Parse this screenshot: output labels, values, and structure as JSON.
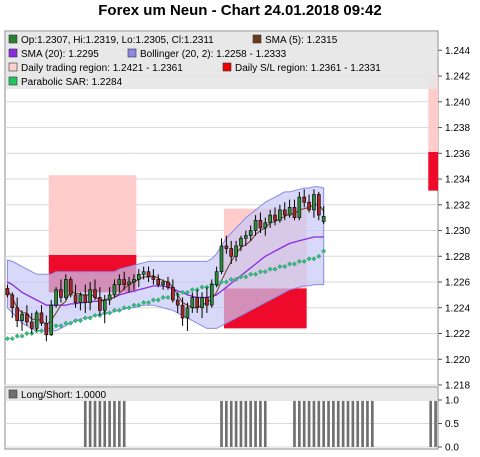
{
  "title": "Forex um Neun - Chart 24.01.2018 09:42",
  "chart_data": [
    {
      "type": "candlestick",
      "ylim": [
        1.218,
        1.2455
      ],
      "y_ticks": [
        "1.218",
        "1.220",
        "1.222",
        "1.224",
        "1.226",
        "1.228",
        "1.230",
        "1.232",
        "1.234",
        "1.236",
        "1.238",
        "1.240",
        "1.242",
        "1.244"
      ],
      "grid": true,
      "legend": [
        {
          "label": "Op:1.2307, Hi:1.2319, Lo:1.2305, Cl:1.2311",
          "color": "#2e7d32"
        },
        {
          "label": "SMA (5): 1.2315",
          "color": "#6d3b1c"
        },
        {
          "label": "SMA (20): 1.2295",
          "color": "#8a2be2"
        },
        {
          "label": "Bollinger (20, 2): 1.2258 - 1.2333",
          "color": "#8a8ae6"
        },
        {
          "label": "Daily trading region: 1.2421 - 1.2361",
          "color": "#ffd0d0"
        },
        {
          "label": "Daily S/L region: 1.2361 - 1.2331",
          "color": "#ee0000"
        },
        {
          "label": "Parabolic SAR: 1.2284",
          "color": "#22c55e"
        }
      ],
      "ohlc": [
        [
          1.2255,
          1.2258,
          1.2248,
          1.225
        ],
        [
          1.225,
          1.2252,
          1.2232,
          1.224
        ],
        [
          1.224,
          1.2248,
          1.2225,
          1.223
        ],
        [
          1.223,
          1.2238,
          1.2222,
          1.2235
        ],
        [
          1.2235,
          1.2242,
          1.2226,
          1.2229
        ],
        [
          1.2229,
          1.2236,
          1.222,
          1.2224
        ],
        [
          1.2224,
          1.2238,
          1.2222,
          1.2236
        ],
        [
          1.2236,
          1.2242,
          1.2226,
          1.2228
        ],
        [
          1.2228,
          1.2234,
          1.2214,
          1.2219
        ],
        [
          1.2219,
          1.2246,
          1.2218,
          1.2242
        ],
        [
          1.2242,
          1.2256,
          1.224,
          1.2254
        ],
        [
          1.2254,
          1.2262,
          1.2244,
          1.2248
        ],
        [
          1.2248,
          1.2266,
          1.2246,
          1.2262
        ],
        [
          1.2262,
          1.2264,
          1.2248,
          1.225
        ],
        [
          1.225,
          1.2258,
          1.224,
          1.2244
        ],
        [
          1.2244,
          1.2252,
          1.2238,
          1.225
        ],
        [
          1.225,
          1.2258,
          1.2236,
          1.2244
        ],
        [
          1.2244,
          1.226,
          1.2238,
          1.2254
        ],
        [
          1.2254,
          1.2262,
          1.2246,
          1.2248
        ],
        [
          1.2248,
          1.2256,
          1.2234,
          1.2238
        ],
        [
          1.2238,
          1.225,
          1.2228,
          1.2246
        ],
        [
          1.2246,
          1.2256,
          1.2242,
          1.225
        ],
        [
          1.225,
          1.2262,
          1.2248,
          1.2258
        ],
        [
          1.2258,
          1.2266,
          1.2252,
          1.2262
        ],
        [
          1.2262,
          1.2268,
          1.2254,
          1.2258
        ],
        [
          1.2258,
          1.2264,
          1.2252,
          1.226
        ],
        [
          1.226,
          1.2266,
          1.2254,
          1.2262
        ],
        [
          1.2262,
          1.227,
          1.2256,
          1.2266
        ],
        [
          1.2266,
          1.2272,
          1.2262,
          1.2268
        ],
        [
          1.2268,
          1.2272,
          1.226,
          1.2264
        ],
        [
          1.2264,
          1.227,
          1.2258,
          1.2262
        ],
        [
          1.2262,
          1.2266,
          1.2256,
          1.2258
        ],
        [
          1.2258,
          1.2262,
          1.2254,
          1.226
        ],
        [
          1.226,
          1.2264,
          1.2254,
          1.2256
        ],
        [
          1.2256,
          1.2262,
          1.2244,
          1.2246
        ],
        [
          1.2246,
          1.2252,
          1.2236,
          1.2242
        ],
        [
          1.2242,
          1.2248,
          1.2226,
          1.2232
        ],
        [
          1.2232,
          1.2244,
          1.2222,
          1.224
        ],
        [
          1.224,
          1.2252,
          1.2236,
          1.2248
        ],
        [
          1.2248,
          1.2254,
          1.2236,
          1.224
        ],
        [
          1.224,
          1.2252,
          1.2232,
          1.2248
        ],
        [
          1.2248,
          1.2256,
          1.2236,
          1.2242
        ],
        [
          1.2242,
          1.2262,
          1.224,
          1.2258
        ],
        [
          1.2258,
          1.2272,
          1.2256,
          1.2268
        ],
        [
          1.2268,
          1.2294,
          1.2266,
          1.2288
        ],
        [
          1.2288,
          1.2296,
          1.2282,
          1.2286
        ],
        [
          1.2286,
          1.2292,
          1.2274,
          1.228
        ],
        [
          1.228,
          1.2292,
          1.2276,
          1.2288
        ],
        [
          1.2288,
          1.2296,
          1.2284,
          1.2294
        ],
        [
          1.2294,
          1.23,
          1.2288,
          1.2296
        ],
        [
          1.2296,
          1.2304,
          1.2292,
          1.23
        ],
        [
          1.23,
          1.2312,
          1.2296,
          1.2308
        ],
        [
          1.2308,
          1.2314,
          1.2298,
          1.2302
        ],
        [
          1.2302,
          1.231,
          1.2296,
          1.2306
        ],
        [
          1.2306,
          1.2316,
          1.2302,
          1.2312
        ],
        [
          1.2312,
          1.2318,
          1.2304,
          1.2308
        ],
        [
          1.2308,
          1.232,
          1.2306,
          1.2316
        ],
        [
          1.2316,
          1.2322,
          1.2308,
          1.2312
        ],
        [
          1.2312,
          1.2324,
          1.231,
          1.2318
        ],
        [
          1.2318,
          1.2324,
          1.2308,
          1.231
        ],
        [
          1.231,
          1.233,
          1.2308,
          1.2326
        ],
        [
          1.2326,
          1.2332,
          1.2318,
          1.2322
        ],
        [
          1.2322,
          1.2328,
          1.2314,
          1.2316
        ],
        [
          1.2316,
          1.2332,
          1.231,
          1.2328
        ],
        [
          1.2328,
          1.233,
          1.2308,
          1.2312
        ],
        [
          1.2307,
          1.2319,
          1.2305,
          1.2311
        ]
      ],
      "sma5": [
        1.2254,
        1.2248,
        1.224,
        1.2236,
        1.2236,
        1.2231,
        1.2231,
        1.223,
        1.2227,
        1.223,
        1.2236,
        1.2242,
        1.2245,
        1.2253,
        1.2251,
        1.2251,
        1.2249,
        1.2251,
        1.2248,
        1.2246,
        1.2246,
        1.2247,
        1.2248,
        1.2251,
        1.2255,
        1.2258,
        1.226,
        1.2262,
        1.2264,
        1.2264,
        1.2265,
        1.2263,
        1.2261,
        1.226,
        1.2256,
        1.225,
        1.2244,
        1.2242,
        1.224,
        1.224,
        1.2242,
        1.2244,
        1.2247,
        1.2252,
        1.2261,
        1.2269,
        1.2276,
        1.2282,
        1.2287,
        1.2289,
        1.2292,
        1.2297,
        1.23,
        1.2302,
        1.2306,
        1.2307,
        1.2309,
        1.2311,
        1.2313,
        1.2313,
        1.2316,
        1.2317,
        1.2318,
        1.232,
        1.232,
        1.2315
      ],
      "sma20": [
        1.226,
        1.2258,
        1.2255,
        1.2252,
        1.225,
        1.2248,
        1.2246,
        1.2244,
        1.2242,
        1.2242,
        1.2242,
        1.2242,
        1.2242,
        1.2243,
        1.2243,
        1.2244,
        1.2244,
        1.2245,
        1.2245,
        1.2245,
        1.2246,
        1.2247,
        1.2248,
        1.225,
        1.2251,
        1.2252,
        1.2253,
        1.2254,
        1.2255,
        1.2256,
        1.2257,
        1.2257,
        1.2257,
        1.2256,
        1.2255,
        1.2253,
        1.2252,
        1.225,
        1.2249,
        1.2248,
        1.2248,
        1.2248,
        1.2249,
        1.225,
        1.2253,
        1.2256,
        1.2259,
        1.2262,
        1.2265,
        1.2268,
        1.2271,
        1.2274,
        1.2277,
        1.228,
        1.2282,
        1.2284,
        1.2286,
        1.2288,
        1.229,
        1.2291,
        1.2292,
        1.2293,
        1.2294,
        1.2295,
        1.2295,
        1.2295
      ],
      "bollinger_upper": [
        1.2277,
        1.2276,
        1.2274,
        1.2272,
        1.227,
        1.2268,
        1.2266,
        1.2266,
        1.2266,
        1.2266,
        1.2268,
        1.2268,
        1.2268,
        1.2268,
        1.2268,
        1.2268,
        1.2268,
        1.2268,
        1.2268,
        1.2268,
        1.2268,
        1.2268,
        1.2268,
        1.227,
        1.2271,
        1.2272,
        1.2273,
        1.2274,
        1.2275,
        1.2276,
        1.2276,
        1.2276,
        1.2276,
        1.2276,
        1.2276,
        1.2276,
        1.2276,
        1.2276,
        1.2276,
        1.2276,
        1.2276,
        1.2276,
        1.2278,
        1.2282,
        1.2288,
        1.2294,
        1.2298,
        1.2302,
        1.2306,
        1.231,
        1.2313,
        1.2316,
        1.2319,
        1.2322,
        1.2324,
        1.2326,
        1.2328,
        1.233,
        1.233,
        1.2331,
        1.2332,
        1.2333,
        1.2333,
        1.2334,
        1.2334,
        1.2333
      ],
      "bollinger_lower": [
        1.224,
        1.2236,
        1.2232,
        1.2228,
        1.2226,
        1.2224,
        1.2222,
        1.2222,
        1.2222,
        1.2222,
        1.2222,
        1.2224,
        1.2226,
        1.2228,
        1.223,
        1.2231,
        1.2232,
        1.2233,
        1.2234,
        1.2235,
        1.2235,
        1.2236,
        1.2237,
        1.2238,
        1.2239,
        1.224,
        1.224,
        1.2241,
        1.2242,
        1.2242,
        1.2242,
        1.2241,
        1.224,
        1.2239,
        1.2238,
        1.2236,
        1.2234,
        1.2232,
        1.223,
        1.2228,
        1.2226,
        1.2224,
        1.2224,
        1.2224,
        1.2226,
        1.2228,
        1.223,
        1.2232,
        1.2234,
        1.2236,
        1.2238,
        1.224,
        1.2242,
        1.2244,
        1.2246,
        1.2248,
        1.225,
        1.2252,
        1.2254,
        1.2255,
        1.2256,
        1.2257,
        1.2257,
        1.2258,
        1.2258,
        1.2258
      ],
      "parabolic_sar": [
        1.2216,
        1.2216,
        1.2218,
        1.2218,
        1.222,
        1.222,
        1.2222,
        1.2222,
        1.2224,
        1.2224,
        1.2226,
        1.2226,
        1.2228,
        1.2228,
        1.223,
        1.223,
        1.2232,
        1.2232,
        1.2234,
        1.2234,
        1.2236,
        1.2236,
        1.2238,
        1.2238,
        1.224,
        1.224,
        1.2242,
        1.2242,
        1.2244,
        1.2244,
        1.2246,
        1.2246,
        1.2248,
        1.2248,
        1.225,
        1.225,
        1.2252,
        1.2252,
        1.2254,
        1.2254,
        1.2256,
        1.2256,
        1.2258,
        1.2258,
        1.226,
        1.226,
        1.2262,
        1.2262,
        1.2264,
        1.2264,
        1.2266,
        1.2266,
        1.2268,
        1.2268,
        1.227,
        1.227,
        1.2272,
        1.2272,
        1.2274,
        1.2274,
        1.2276,
        1.2276,
        1.2278,
        1.2278,
        1.228,
        1.2284
      ],
      "region_blocks": [
        {
          "i0": 9,
          "i1": 26,
          "trade": [
            1.2343,
            1.2281
          ],
          "sl": [
            1.2281,
            1.2252
          ]
        },
        {
          "i0": 45,
          "i1": 61,
          "trade": [
            1.2317,
            1.2255
          ],
          "sl": [
            1.2255,
            1.2224
          ]
        },
        {
          "i0": 87,
          "i1": 88,
          "trade": [
            1.2421,
            1.2361
          ],
          "sl": [
            1.2361,
            1.2331
          ]
        }
      ]
    },
    {
      "type": "bar",
      "legend": [
        {
          "label": "Long/Short: 1.0000",
          "color": "#707070"
        }
      ],
      "y_ticks": [
        "0.0",
        "0.5",
        "1.0"
      ],
      "ylim": [
        0,
        1
      ],
      "values": [
        0,
        0,
        0,
        0,
        0,
        0,
        0,
        0,
        0,
        0,
        0,
        0,
        0,
        0,
        0,
        0,
        1,
        1,
        1,
        1,
        1,
        1,
        1,
        1,
        1,
        0,
        0,
        0,
        0,
        0,
        0,
        0,
        0,
        0,
        0,
        0,
        0,
        0,
        0,
        0,
        0,
        0,
        0,
        0,
        1,
        1,
        1,
        1,
        1,
        1,
        1,
        1,
        1,
        1,
        0,
        0,
        0,
        0,
        0,
        1,
        1,
        1,
        1,
        1,
        1,
        1,
        1,
        1,
        1,
        1,
        1,
        1,
        1,
        1,
        1,
        1,
        0,
        0,
        0,
        0,
        0,
        0,
        0,
        0,
        0,
        0,
        0,
        1,
        1
      ]
    }
  ]
}
